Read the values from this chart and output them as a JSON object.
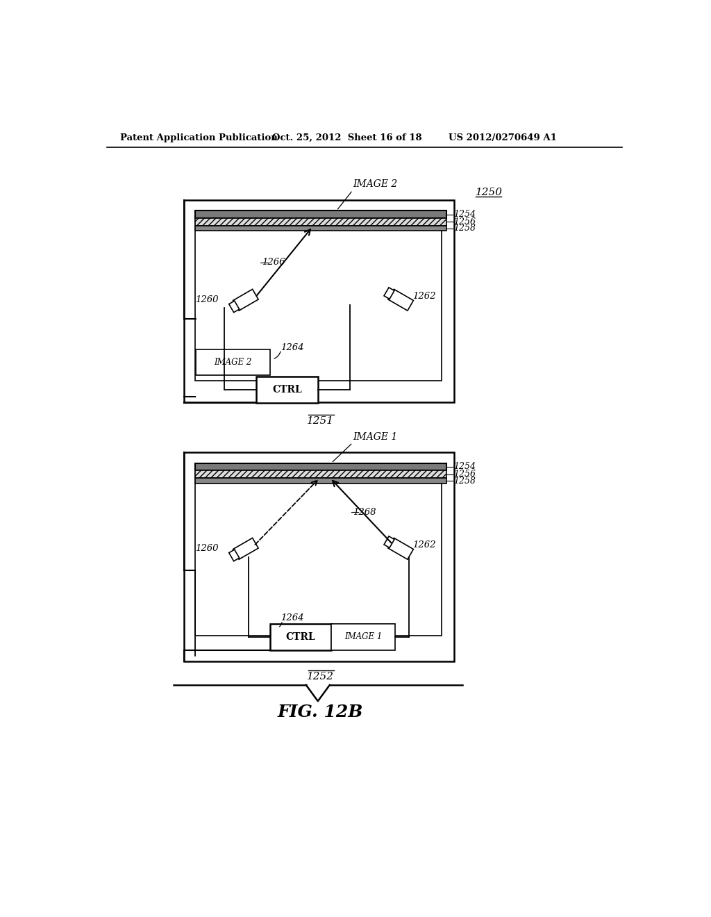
{
  "bg_color": "#ffffff",
  "header_left": "Patent Application Publication",
  "header_mid": "Oct. 25, 2012  Sheet 16 of 18",
  "header_right": "US 2012/0270649 A1"
}
